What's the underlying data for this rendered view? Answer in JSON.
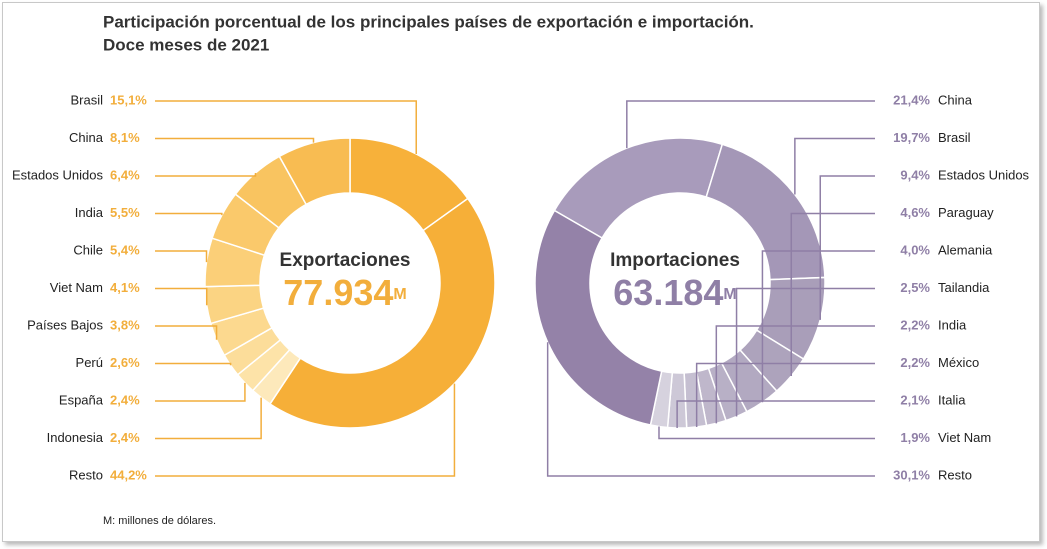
{
  "title": [
    "Participación porcentual de los principales países de exportación e importación.",
    "Doce meses de 2021"
  ],
  "note": "M: millones de dólares.",
  "chart_data": [
    {
      "type": "pie",
      "center_title": "Exportaciones",
      "center_value": "77.934",
      "center_unit": "M",
      "label_color": "#f2ae3c",
      "categories": [
        "Brasil",
        "China",
        "Estados Unidos",
        "India",
        "Chile",
        "Viet Nam",
        "Países Bajos",
        "Perú",
        "España",
        "Indonesia",
        "Resto"
      ],
      "values": [
        15.1,
        8.1,
        6.4,
        5.5,
        5.4,
        4.1,
        3.8,
        2.6,
        2.4,
        2.4,
        44.2
      ],
      "value_labels": [
        "15,1%",
        "8,1%",
        "6,4%",
        "5,5%",
        "5,4%",
        "4,1%",
        "3,8%",
        "2,6%",
        "2,4%",
        "2,4%",
        "44,2%"
      ],
      "colors": [
        "#f7b13a",
        "#f8bc52",
        "#f9c460",
        "#fac96b",
        "#fbcf78",
        "#fbd483",
        "#fcd98f",
        "#fcdd9a",
        "#fde3a8",
        "#fde9bb",
        "#f6af38"
      ]
    },
    {
      "type": "pie",
      "center_title": "Importaciones",
      "center_value": "63.184",
      "center_unit": "M",
      "label_color": "#8f7fa6",
      "categories": [
        "China",
        "Brasil",
        "Estados Unidos",
        "Paraguay",
        "Alemania",
        "Tailandia",
        "India",
        "México",
        "Italia",
        "Viet Nam",
        "Resto"
      ],
      "values": [
        21.4,
        19.7,
        9.4,
        4.6,
        4.0,
        2.5,
        2.2,
        2.2,
        2.1,
        1.9,
        30.1
      ],
      "value_labels": [
        "21,4%",
        "19,7%",
        "9,4%",
        "4,6%",
        "4,0%",
        "2,5%",
        "2,2%",
        "2,2%",
        "2,1%",
        "1,9%",
        "30,1%"
      ],
      "colors": [
        "#a89bbb",
        "#a497b7",
        "#a99eb9",
        "#ada3bc",
        "#b2a9c1",
        "#b8b0c6",
        "#bfb7cb",
        "#c5bfd1",
        "#cdc8d7",
        "#d6d2de",
        "#9482a8"
      ]
    }
  ]
}
